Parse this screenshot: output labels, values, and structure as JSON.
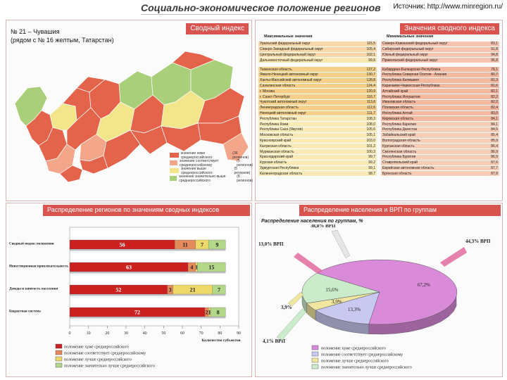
{
  "header": {
    "title": "Социально-экономическое положение регионов",
    "source": "Источник: http://www.minregion.ru/"
  },
  "map_panel": {
    "banner": "Сводный индекс",
    "note_line1": "№ 21 – Чувашия",
    "note_line2": "(рядом с № 16 желтым, Татарстан)",
    "legend": [
      {
        "label": "значение ниже среднероссийского",
        "count": "(36 регионов)",
        "color": "#e3644b"
      },
      {
        "label": "значение соответствует среднероссийскому",
        "count": "(5 регионов)",
        "color": "#f3a68a"
      },
      {
        "label": "значение выше среднероссийского",
        "count": "(5 регионов)",
        "color": "#f3e58a"
      },
      {
        "label": "значение значительно выше среднероссийского",
        "count": "(8 регионов)",
        "color": "#a9cf7a"
      }
    ]
  },
  "table_panel": {
    "banner": "Значения сводного индекса",
    "max_header": "Максимальные значения",
    "min_header": "Минимальные значения",
    "max_groups": [
      [
        {
          "name": "Уральский федеральный округ",
          "value": "115,5"
        },
        {
          "name": "Северо-Западный федеральный округ",
          "value": "105,4"
        },
        {
          "name": "Центральный федеральный округ",
          "value": "102,1"
        },
        {
          "name": "Дальневосточный федеральный округ",
          "value": "99,8"
        }
      ],
      [
        {
          "name": "Тюменская область",
          "value": "137,2"
        },
        {
          "name": "Ямало-Ненецкий автономный округ",
          "value": "130,7"
        },
        {
          "name": "Ханты-Мансийский автономный округ",
          "value": "128,8"
        },
        {
          "name": "Сахалинская область",
          "value": "124,4"
        },
        {
          "name": "г. Москва",
          "value": "120,9"
        },
        {
          "name": "г. Санкт-Петербург",
          "value": "116,7"
        },
        {
          "name": "Чукотский автономный округ",
          "value": "113,8"
        },
        {
          "name": "Ленинградская область",
          "value": "112,6"
        },
        {
          "name": "Ненецкий автономный округ",
          "value": "111,7"
        },
        {
          "name": "Республика Татарстан",
          "value": "108,3"
        },
        {
          "name": "Республика Коми",
          "value": "108,0"
        },
        {
          "name": "Республика Саха (Якутия)",
          "value": "105,6"
        },
        {
          "name": "Московская область",
          "value": "105,1"
        },
        {
          "name": "Красноярский край",
          "value": "103,0"
        },
        {
          "name": "Калужская область",
          "value": "101,2"
        },
        {
          "name": "Мурманская область",
          "value": "100,3"
        },
        {
          "name": "Краснодарский край",
          "value": "99,7"
        },
        {
          "name": "Курская область",
          "value": "99,2"
        },
        {
          "name": "Удмуртская Республика",
          "value": "99,1"
        },
        {
          "name": "Калининградская область",
          "value": "98,7"
        }
      ]
    ],
    "min_groups": [
      [
        {
          "name": "Северо-Кавказский федеральный округ",
          "value": "83,1"
        },
        {
          "name": "Сибирский федеральный округ",
          "value": "91,8"
        },
        {
          "name": "Южный федеральный округ",
          "value": "94,8"
        },
        {
          "name": "Приволжский федеральный округ",
          "value": "95,8"
        }
      ],
      [
        {
          "name": "Кабардино-Балкарская Республика",
          "value": "78,1"
        },
        {
          "name": "Республика Северная Осетия - Алания",
          "value": "80,7"
        },
        {
          "name": "Республика Калмыкия",
          "value": "81,3"
        },
        {
          "name": "Карачаево-Черкесская Республика",
          "value": "81,6"
        },
        {
          "name": "Алтайский край",
          "value": "82,1"
        },
        {
          "name": "Республика Ингушетия",
          "value": "82,2"
        },
        {
          "name": "Ивановская область",
          "value": "82,2"
        },
        {
          "name": "Псковская область",
          "value": "82,4"
        },
        {
          "name": "Республика Алтай",
          "value": "83,0"
        },
        {
          "name": "Кировская область",
          "value": "84,1"
        },
        {
          "name": "Республика Карелия",
          "value": "84,1"
        },
        {
          "name": "Республика Дагестан",
          "value": "84,5"
        },
        {
          "name": "Забайкальский край",
          "value": "85,4"
        },
        {
          "name": "Волгоградская область",
          "value": "85,9"
        },
        {
          "name": "Курганская область",
          "value": "86,4"
        },
        {
          "name": "Смоленская область",
          "value": "86,9"
        },
        {
          "name": "Республика Бурятия",
          "value": "86,9"
        },
        {
          "name": "Ставропольский край",
          "value": "87,6"
        },
        {
          "name": "Еврейская автономная область",
          "value": "87,7"
        },
        {
          "name": "Брянская область",
          "value": "87,8"
        }
      ]
    ]
  },
  "bar_panel": {
    "banner": "Распределение регионов по значениям сводных индексов",
    "legend": [
      {
        "label": "положение хуже среднероссийского",
        "color": "#cc1f1f"
      },
      {
        "label": "положение соответствует среднероссийскому",
        "color": "#e58a5a"
      },
      {
        "label": "положение лучше среднероссийского",
        "color": "#ecd96a"
      },
      {
        "label": "положение значительно лучше среднероссийского",
        "color": "#b4d88a"
      }
    ]
  },
  "pie_panel": {
    "banner": "Распределение населения и ВРП по группам",
    "subtitle": "Распределение населения по группам, %",
    "vrp_labels": [
      "38,8% ВРП",
      "13,0% ВРП",
      "44,3% ВРП",
      "3,9%",
      "4,1% ВРП"
    ],
    "legend": [
      {
        "label": "положение хуже среднероссийского",
        "color": "#d98ad9"
      },
      {
        "label": "положение соответствует среднероссийскому",
        "color": "#c8c8f0"
      },
      {
        "label": "положение лучше среднероссийского",
        "color": "#f0e6a0"
      },
      {
        "label": "положение значительно лучше среднероссийского",
        "color": "#cbeccb"
      }
    ]
  },
  "chart_data": [
    {
      "type": "bar",
      "stacked": true,
      "orientation": "horizontal",
      "categories": [
        "Сводный индекс положения",
        "Инвестиционная привлекательность",
        "Доходы и занятость населения",
        "Бюджетная система"
      ],
      "series": [
        {
          "name": "положение хуже среднероссийского",
          "values": [
            56,
            63,
            52,
            72
          ]
        },
        {
          "name": "положение соответствует среднероссийскому",
          "values": [
            11,
            4,
            3,
            2
          ]
        },
        {
          "name": "положение лучше среднероссийского",
          "values": [
            7,
            1,
            21,
            1
          ]
        },
        {
          "name": "положение значительно лучше среднероссийского",
          "values": [
            9,
            15,
            7,
            8
          ]
        }
      ],
      "xlim": [
        0,
        90
      ],
      "xticks": [
        0,
        10,
        20,
        30,
        40,
        50,
        60,
        70,
        80,
        90
      ],
      "xlabel": "Количество субъектов",
      "colors": [
        "#cc1f1f",
        "#e58a5a",
        "#ecd96a",
        "#b4d88a"
      ]
    },
    {
      "type": "pie",
      "title": "Распределение населения по группам, %",
      "labels": [
        "положение хуже среднероссийского",
        "положение соответствует среднероссийскому",
        "положение лучше среднероссийского",
        "положение значительно лучше среднероссийского"
      ],
      "values": [
        67.2,
        13.3,
        3.9,
        15.6
      ],
      "value_labels": [
        "67,2%",
        "13,3%",
        "3,9%",
        "15,6%"
      ],
      "colors": [
        "#d98ad9",
        "#c8c8f0",
        "#f0e6a0",
        "#cbeccb"
      ]
    }
  ]
}
